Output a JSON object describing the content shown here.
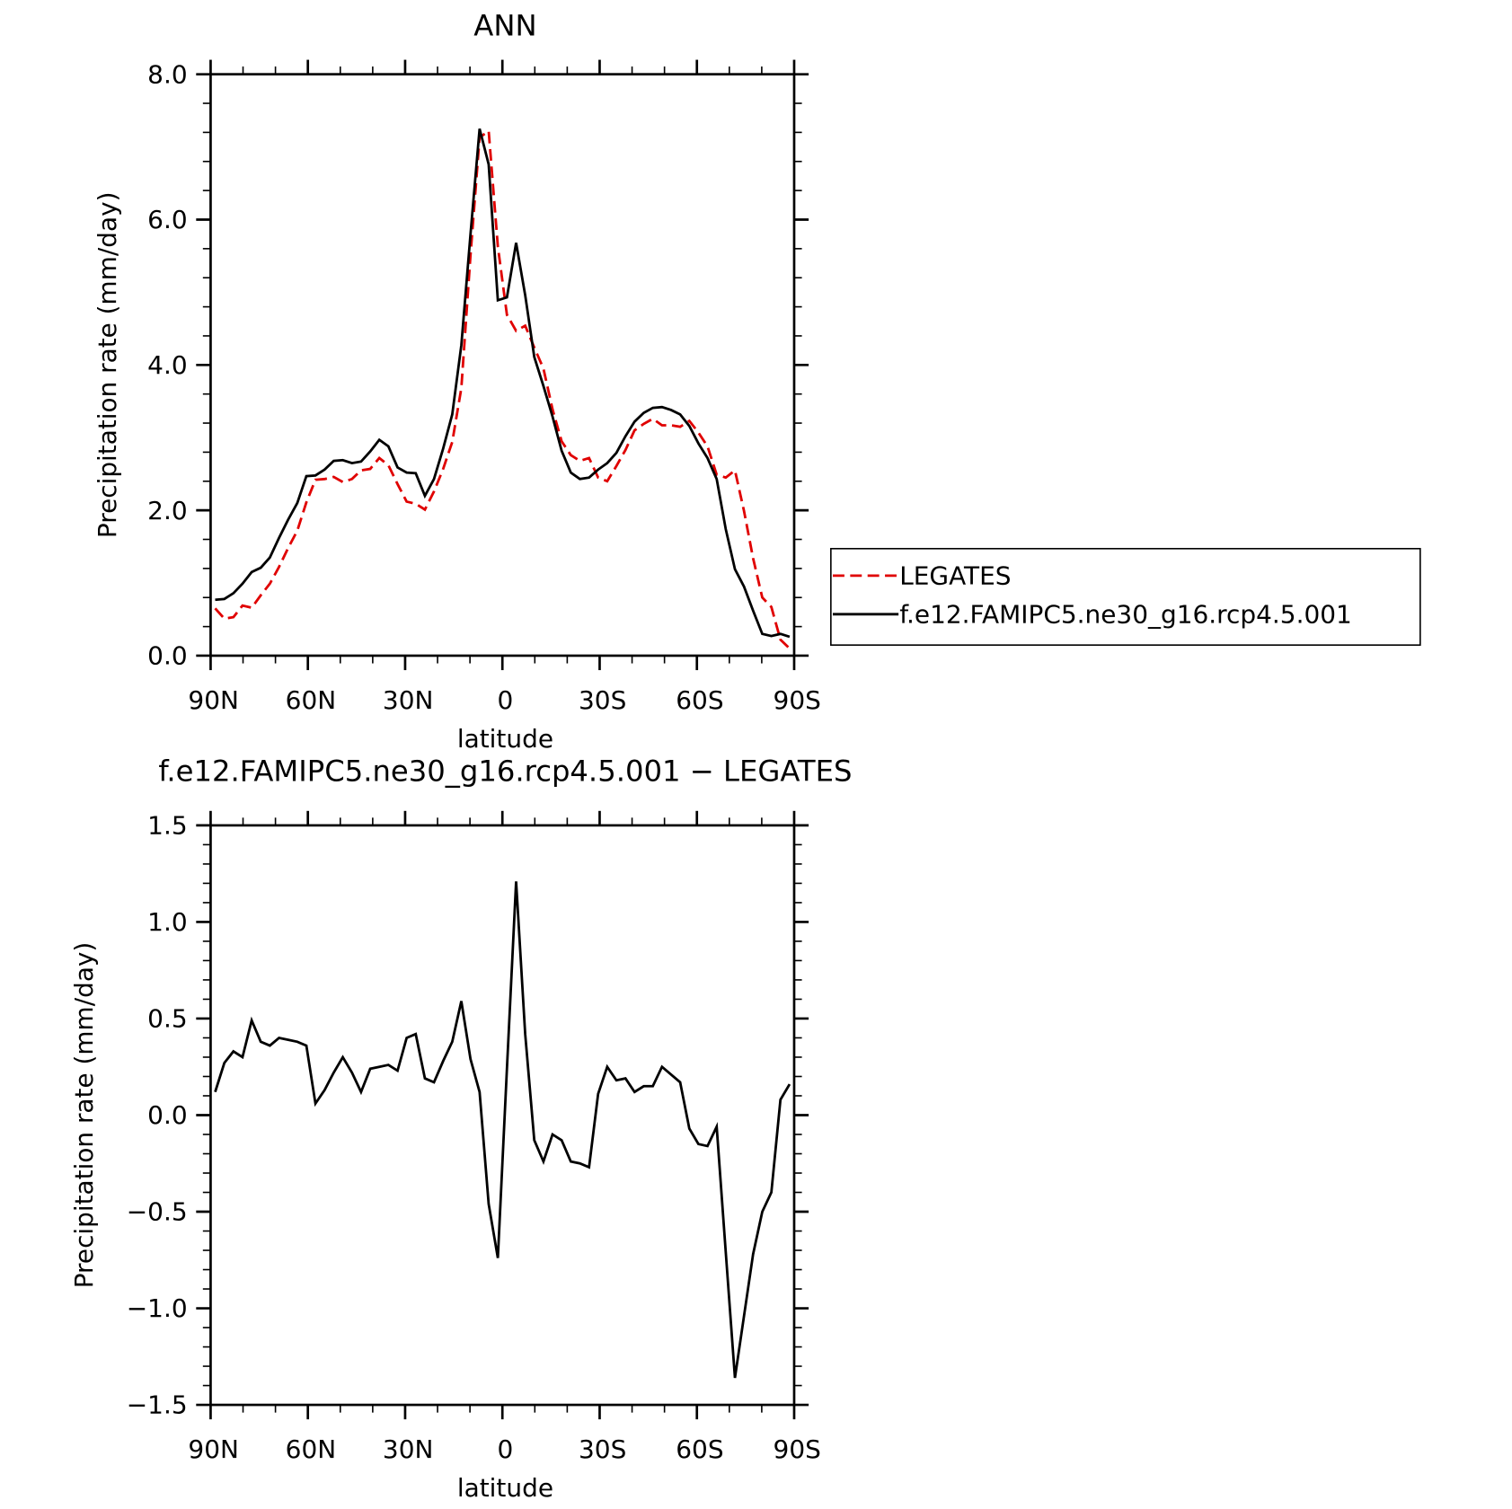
{
  "chart_data": [
    {
      "type": "line",
      "title": "ANN",
      "xlabel": "latitude",
      "ylabel": "Precipitation rate (mm/day)",
      "x": [
        88.59,
        85.78,
        82.97,
        80.16,
        77.34,
        74.53,
        71.72,
        68.91,
        66.09,
        63.28,
        60.47,
        57.66,
        54.84,
        52.03,
        49.22,
        46.41,
        43.59,
        40.78,
        37.97,
        35.16,
        32.34,
        29.53,
        26.72,
        23.91,
        21.09,
        18.28,
        15.47,
        12.66,
        9.84,
        7.03,
        4.22,
        1.41,
        -1.41,
        -4.22,
        -7.03,
        -9.84,
        -12.66,
        -15.47,
        -18.28,
        -21.09,
        -23.91,
        -26.72,
        -29.53,
        -32.34,
        -35.16,
        -37.97,
        -40.78,
        -43.59,
        -46.41,
        -49.22,
        -52.03,
        -54.84,
        -57.66,
        -60.47,
        -63.28,
        -66.09,
        -68.91,
        -71.72,
        -74.53,
        -77.34,
        -80.16,
        -82.97,
        -85.78,
        -88.59
      ],
      "series": [
        {
          "name": "LEGATES",
          "color": "#e00000",
          "dash": true,
          "values": [
            0.65,
            0.51,
            0.53,
            0.69,
            0.66,
            0.83,
            0.99,
            1.22,
            1.48,
            1.72,
            2.11,
            2.42,
            2.43,
            2.46,
            2.39,
            2.43,
            2.55,
            2.57,
            2.72,
            2.62,
            2.36,
            2.12,
            2.09,
            2.01,
            2.26,
            2.57,
            2.94,
            3.68,
            5.51,
            7.13,
            7.22,
            5.63,
            4.69,
            4.47,
            4.54,
            4.24,
            3.95,
            3.39,
            2.95,
            2.76,
            2.68,
            2.72,
            2.45,
            2.4,
            2.61,
            2.83,
            3.1,
            3.19,
            3.26,
            3.17,
            3.17,
            3.15,
            3.23,
            3.07,
            2.88,
            2.49,
            2.45,
            2.55,
            1.99,
            1.34,
            0.8,
            0.67,
            0.22,
            0.1
          ]
        },
        {
          "name": "f.e12.FAMIPC5.ne30_g16.rcp4.5.001",
          "color": "#000000",
          "dash": false,
          "values": [
            0.77,
            0.78,
            0.86,
            0.99,
            1.15,
            1.21,
            1.35,
            1.62,
            1.87,
            2.1,
            2.47,
            2.48,
            2.56,
            2.68,
            2.69,
            2.65,
            2.67,
            2.81,
            2.97,
            2.88,
            2.59,
            2.52,
            2.51,
            2.2,
            2.43,
            2.85,
            3.32,
            4.27,
            5.8,
            7.25,
            6.76,
            4.89,
            4.93,
            5.68,
            4.96,
            4.11,
            3.71,
            3.29,
            2.82,
            2.52,
            2.43,
            2.45,
            2.56,
            2.65,
            2.79,
            3.02,
            3.22,
            3.34,
            3.41,
            3.42,
            3.38,
            3.32,
            3.16,
            2.92,
            2.72,
            2.43,
            1.74,
            1.19,
            0.95,
            0.62,
            0.3,
            0.27,
            0.3,
            0.26
          ]
        }
      ],
      "xlim": [
        90,
        -90
      ],
      "xticks": [
        {
          "value": 90,
          "label": "90N"
        },
        {
          "value": 60,
          "label": "60N"
        },
        {
          "value": 30,
          "label": "30N"
        },
        0,
        {
          "value": -30,
          "label": "30S"
        },
        {
          "value": -60,
          "label": "60S"
        },
        {
          "value": -90,
          "label": "90S"
        }
      ],
      "ylim": [
        0,
        8
      ],
      "yticks": [
        {
          "value": 0,
          "label": "0.0"
        },
        {
          "value": 2,
          "label": "2.0"
        },
        {
          "value": 4,
          "label": "4.0"
        },
        {
          "value": 6,
          "label": "6.0"
        },
        {
          "value": 8,
          "label": "8.0"
        }
      ],
      "legend": "right"
    },
    {
      "type": "line",
      "title": "f.e12.FAMIPC5.ne30_g16.rcp4.5.001 − LEGATES",
      "xlabel": "latitude",
      "ylabel": "Precipitation rate (mm/day)",
      "x": [
        88.59,
        85.78,
        82.97,
        80.16,
        77.34,
        74.53,
        71.72,
        68.91,
        66.09,
        63.28,
        60.47,
        57.66,
        54.84,
        52.03,
        49.22,
        46.41,
        43.59,
        40.78,
        37.97,
        35.16,
        32.34,
        29.53,
        26.72,
        23.91,
        21.09,
        18.28,
        15.47,
        12.66,
        9.84,
        7.03,
        4.22,
        1.41,
        -1.41,
        -4.22,
        -7.03,
        -9.84,
        -12.66,
        -15.47,
        -18.28,
        -21.09,
        -23.91,
        -26.72,
        -29.53,
        -32.34,
        -35.16,
        -37.97,
        -40.78,
        -43.59,
        -46.41,
        -49.22,
        -52.03,
        -54.84,
        -57.66,
        -60.47,
        -63.28,
        -66.09,
        -68.91,
        -71.72,
        -74.53,
        -77.34,
        -80.16,
        -82.97,
        -85.78,
        -88.59
      ],
      "series": [
        {
          "color": "#000000",
          "dash": false,
          "values": [
            0.12,
            0.27,
            0.33,
            0.3,
            0.49,
            0.38,
            0.36,
            0.4,
            0.39,
            0.38,
            0.36,
            0.06,
            0.13,
            0.22,
            0.3,
            0.22,
            0.12,
            0.24,
            0.25,
            0.26,
            0.23,
            0.4,
            0.42,
            0.19,
            0.17,
            0.28,
            0.38,
            0.59,
            0.29,
            0.12,
            -0.46,
            -0.74,
            0.24,
            1.21,
            0.42,
            -0.13,
            -0.24,
            -0.1,
            -0.13,
            -0.24,
            -0.25,
            -0.27,
            0.11,
            0.25,
            0.18,
            0.19,
            0.12,
            0.15,
            0.15,
            0.25,
            0.21,
            0.17,
            -0.07,
            -0.15,
            -0.16,
            -0.06,
            -0.71,
            -1.36,
            -1.04,
            -0.72,
            -0.5,
            -0.4,
            0.08,
            0.16
          ]
        }
      ],
      "xlim": [
        90,
        -90
      ],
      "xticks": [
        {
          "value": 90,
          "label": "90N"
        },
        {
          "value": 60,
          "label": "60N"
        },
        {
          "value": 30,
          "label": "30N"
        },
        0,
        {
          "value": -30,
          "label": "30S"
        },
        {
          "value": -60,
          "label": "60S"
        },
        {
          "value": -90,
          "label": "90S"
        }
      ],
      "ylim": [
        -1.5,
        1.5
      ],
      "yticks": [
        {
          "value": -1.5,
          "label": "−1.5"
        },
        {
          "value": -1,
          "label": "−1.0"
        },
        {
          "value": -0.5,
          "label": "−0.5"
        },
        {
          "value": 0,
          "label": "0.0"
        },
        {
          "value": 0.5,
          "label": "0.5"
        },
        {
          "value": 1,
          "label": "1.0"
        },
        {
          "value": 1.5,
          "label": "1.5"
        }
      ]
    }
  ]
}
